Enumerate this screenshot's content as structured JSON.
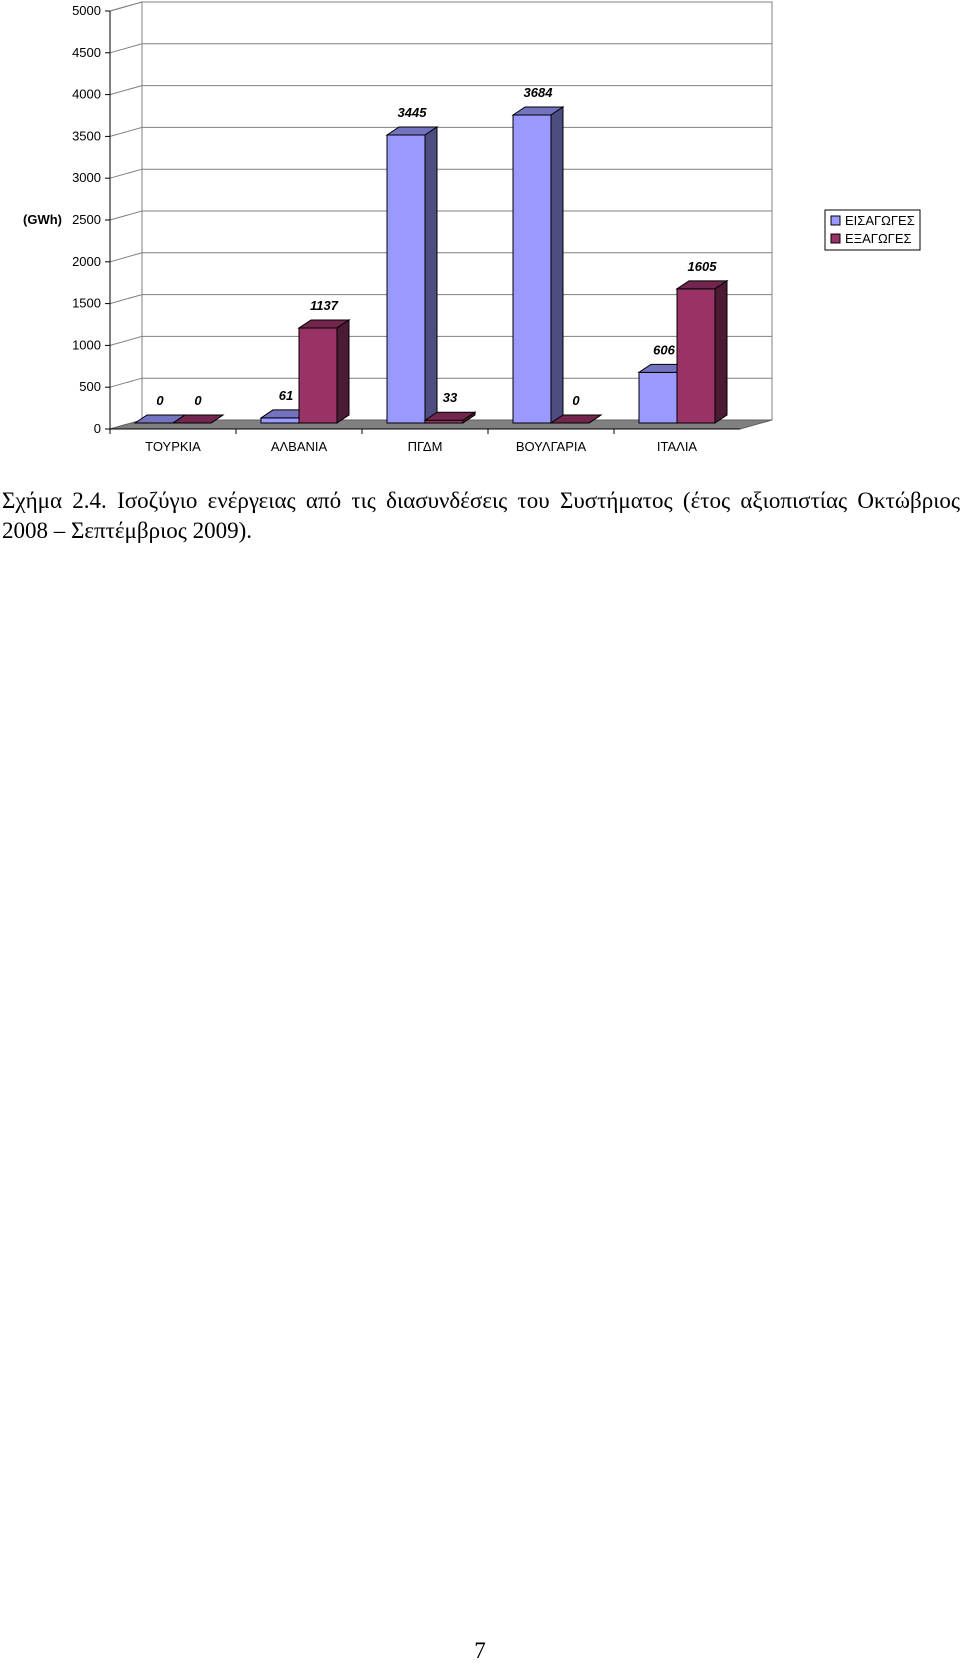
{
  "chart_data": {
    "type": "bar",
    "ylabel": "(GWh)",
    "ylim": [
      0,
      5000
    ],
    "yticks": [
      0,
      500,
      1000,
      1500,
      2000,
      2500,
      3000,
      3500,
      4000,
      4500,
      5000
    ],
    "categories": [
      "ΤΟΥΡΚΙΑ",
      "ΑΛΒΑΝΙΑ",
      "ΠΓΔΜ",
      "ΒΟΥΛΓΑΡΙΑ",
      "ΙΤΑΛΙΑ"
    ],
    "series": [
      {
        "name": "ΕΙΣΑΓΩΓΕΣ",
        "color": "#9999ff",
        "values": [
          0,
          61,
          3445,
          3684,
          606
        ]
      },
      {
        "name": "ΕΞΑΓΩΓΕΣ",
        "color": "#993366",
        "values": [
          0,
          1137,
          33,
          0,
          1605
        ]
      }
    ],
    "grid": true,
    "legend": "right",
    "style": "3d-clustered-column"
  },
  "caption": "Σχήμα 2.4. Ισοζύγιο ενέργειας από τις διασυνδέσεις του Συστήματος (έτος αξιοπιστίας Οκτώβριος 2008 – Σεπτέμβριος 2009).",
  "page_number": "7"
}
